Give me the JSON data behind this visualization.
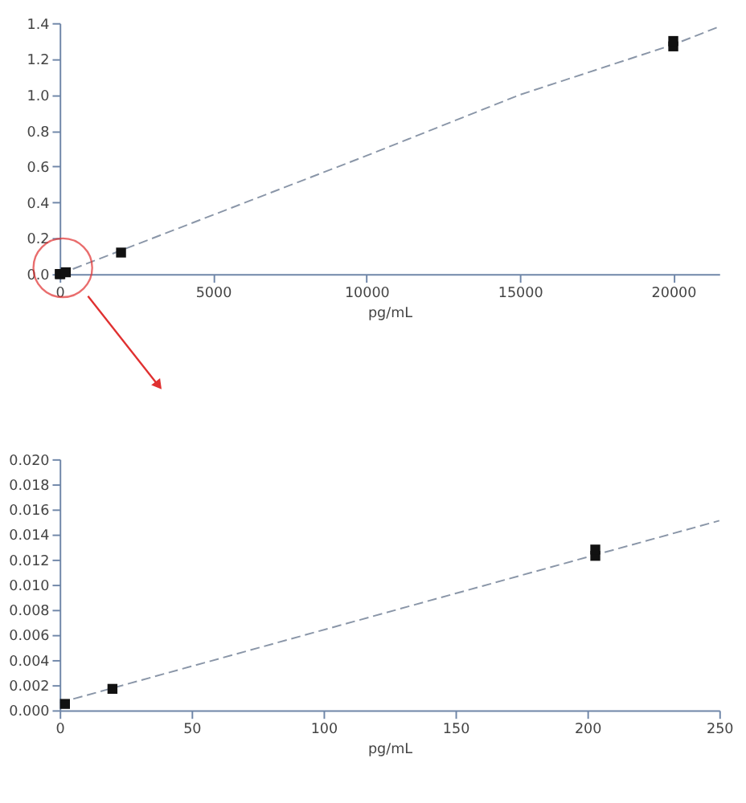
{
  "chart_data": [
    {
      "type": "scatter",
      "xlabel": "pg/mL",
      "marker": "square",
      "grid": false,
      "xlim": [
        0,
        21500
      ],
      "ylim": [
        0,
        1.4
      ],
      "xticks": [
        0,
        5000,
        10000,
        15000,
        20000
      ],
      "yticks": [
        {
          "value": 0,
          "label": "0.0"
        },
        {
          "value": 0.2,
          "label": "0.2"
        },
        {
          "value": 0.4,
          "label": "0.4"
        },
        {
          "value": 0.6,
          "label": "0.6"
        },
        {
          "value": 0.8,
          "label": "0.8"
        },
        {
          "value": 1.0,
          "label": "1.0"
        },
        {
          "value": 1.2,
          "label": "1.2"
        },
        {
          "value": 1.4,
          "label": "1.4"
        }
      ],
      "series": [
        {
          "type": "line",
          "marker": "none",
          "line_style": "dashed",
          "color": "#8a96a8",
          "x": [
            0,
            5000,
            10000,
            15000,
            20000,
            21500
          ],
          "values": [
            0.0,
            0.33,
            0.66,
            1.0,
            1.28,
            1.38
          ]
        },
        {
          "color": "#111111",
          "x": [
            2,
            20,
            200,
            2000,
            20000,
            20000
          ],
          "values": [
            0.0,
            0.0,
            0.01,
            0.12,
            1.27,
            1.3
          ]
        }
      ]
    },
    {
      "type": "scatter",
      "xlabel": "pg/mL",
      "marker": "square",
      "grid": false,
      "xlim": [
        0,
        250
      ],
      "ylim": [
        0,
        0.02
      ],
      "xticks": [
        0,
        50,
        100,
        150,
        200,
        250
      ],
      "yticks": [
        {
          "value": 0,
          "label": "0.000"
        },
        {
          "value": 0.002,
          "label": "0.002"
        },
        {
          "value": 0.004,
          "label": "0.004"
        },
        {
          "value": 0.006,
          "label": "0.006"
        },
        {
          "value": 0.008,
          "label": "0.008"
        },
        {
          "value": 0.01,
          "label": "0.010"
        },
        {
          "value": 0.012,
          "label": "0.012"
        },
        {
          "value": 0.014,
          "label": "0.014"
        },
        {
          "value": 0.016,
          "label": "0.016"
        },
        {
          "value": 0.018,
          "label": "0.018"
        },
        {
          "value": 0.02,
          "label": "0.020"
        }
      ],
      "series": [
        {
          "type": "line",
          "marker": "none",
          "line_style": "dashed",
          "color": "#8a96a8",
          "x": [
            0,
            250
          ],
          "values": [
            0.0006,
            0.0151
          ]
        },
        {
          "color": "#111111",
          "x": [
            2,
            20,
            203,
            203
          ],
          "values": [
            0.0005,
            0.0017,
            0.0123,
            0.0128
          ]
        }
      ]
    }
  ]
}
